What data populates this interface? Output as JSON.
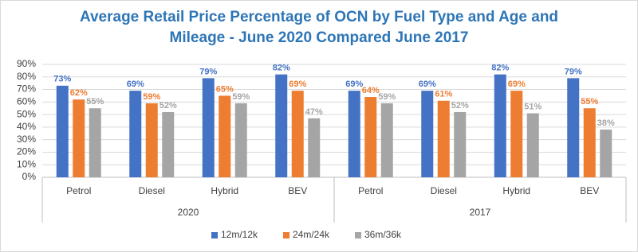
{
  "chart_data": {
    "type": "bar",
    "title": [
      "Average Retail Price Percentage of OCN by Fuel Type and Age and",
      "Mileage - June 2020 Compared June 2017"
    ],
    "categories": [
      "Petrol",
      "Diesel",
      "Hybrid",
      "BEV",
      "Petrol",
      "Diesel",
      "Hybrid",
      "BEV"
    ],
    "groups": [
      "2020",
      "2017"
    ],
    "series": [
      {
        "name": "12m/12k",
        "color": "#4472c4",
        "values": [
          73,
          69,
          79,
          82,
          69,
          69,
          82,
          79
        ],
        "value_labels": [
          "73%",
          "69%",
          "79%",
          "82%",
          "69%",
          "69%",
          "82%",
          "79%"
        ]
      },
      {
        "name": "24m/24k",
        "color": "#ed7d31",
        "values": [
          62,
          59,
          65,
          69,
          64,
          61,
          69,
          55
        ],
        "value_labels": [
          "62%",
          "59%",
          "65%",
          "69%",
          "64%",
          "61%",
          "69%",
          "55%"
        ]
      },
      {
        "name": "36m/36k",
        "color": "#a5a5a5",
        "values": [
          55,
          52,
          59,
          47,
          59,
          52,
          51,
          38
        ],
        "value_labels": [
          "55%",
          "52%",
          "59%",
          "47%",
          "59%",
          "52%",
          "51%",
          "38%"
        ]
      }
    ],
    "ylim": [
      0,
      90
    ],
    "yticks": [
      {
        "value": 0,
        "label": "0%"
      },
      {
        "value": 10,
        "label": "10%"
      },
      {
        "value": 20,
        "label": "20%"
      },
      {
        "value": 30,
        "label": "30%"
      },
      {
        "value": 40,
        "label": "40%"
      },
      {
        "value": 50,
        "label": "50%"
      },
      {
        "value": 60,
        "label": "60%"
      },
      {
        "value": 70,
        "label": "70%"
      },
      {
        "value": 80,
        "label": "80%"
      },
      {
        "value": 90,
        "label": "90%"
      }
    ],
    "grid": true,
    "legend": "bottom"
  }
}
